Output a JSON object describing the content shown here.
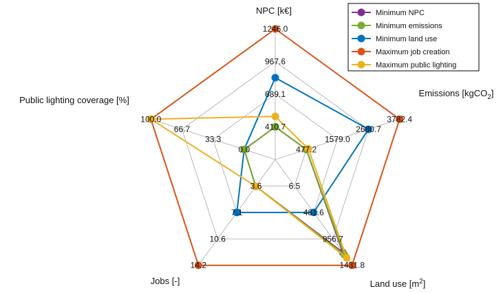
{
  "chart_data": {
    "type": "radar",
    "axes": [
      {
        "label": "NPC [k€]",
        "label_sub": "",
        "ticks": [
          "410.7",
          "689.1",
          "967.6",
          "1246.0"
        ],
        "min": 132.2,
        "max": 1246.0
      },
      {
        "label": "Emissions [kgCO",
        "label_sub": "2",
        "label_end": "]",
        "ticks": [
          "477.2",
          "1579.0",
          "2680.7",
          "3782.4"
        ],
        "min": -624.5,
        "max": 3782.4
      },
      {
        "label": "Land use [m",
        "label_sup": "2",
        "label_end": "]",
        "ticks": [
          "6.5",
          "481.6",
          "956.7",
          "1431.8"
        ],
        "min": -468.6,
        "max": 1431.8
      },
      {
        "label": "Jobs [-]",
        "ticks": [
          "3.6",
          "7.1",
          "10.6",
          "14.2"
        ],
        "min": 0.0,
        "max": 14.2
      },
      {
        "label": "Public lighting coverage [%]",
        "ticks": [
          "0.0",
          "33.3",
          "66.7",
          "100.0"
        ],
        "min": -33.3,
        "max": 100.0
      }
    ],
    "series": [
      {
        "name": "Minimum NPC",
        "color": "#7E2F8E",
        "values": [
          410.7,
          477.2,
          1200.0,
          3.6,
          0.0
        ]
      },
      {
        "name": "Minimum emissions",
        "color": "#77AC30",
        "values": [
          410.7,
          477.2,
          1240.0,
          3.6,
          0.0
        ]
      },
      {
        "name": "Minimum land use",
        "color": "#0072BD",
        "values": [
          830.0,
          2680.7,
          481.6,
          7.1,
          0.0
        ]
      },
      {
        "name": "Maximum job creation",
        "color": "#D95319",
        "values": [
          1246.0,
          3782.4,
          1431.8,
          14.2,
          100.0
        ]
      },
      {
        "name": "Maximum public lighting",
        "color": "#EDB120",
        "values": [
          500.0,
          550.0,
          1300.0,
          3.6,
          100.0
        ]
      }
    ],
    "rings": 4,
    "grid": true,
    "grid_color": "#b0b0b0",
    "legend_placement": "top-right"
  }
}
